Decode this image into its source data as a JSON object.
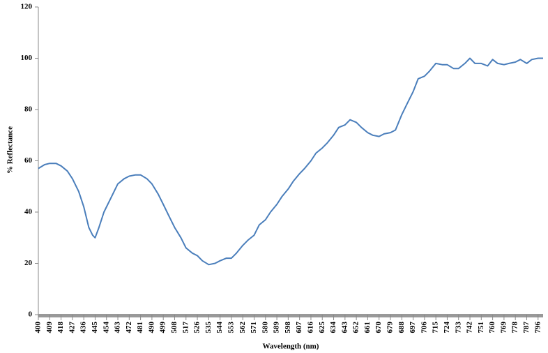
{
  "chart_data": {
    "type": "line",
    "xlabel": "Wavelength (nm)",
    "ylabel": "% Reflectance",
    "x": [
      400,
      405,
      409,
      414,
      418,
      423,
      427,
      432,
      436,
      440,
      443,
      445,
      448,
      452,
      457,
      463,
      468,
      472,
      477,
      481,
      486,
      490,
      495,
      499,
      504,
      508,
      513,
      517,
      522,
      526,
      530,
      535,
      540,
      544,
      549,
      553,
      557,
      562,
      566,
      571,
      575,
      580,
      584,
      589,
      593,
      598,
      602,
      607,
      611,
      616,
      620,
      625,
      629,
      634,
      638,
      643,
      647,
      652,
      656,
      661,
      665,
      670,
      674,
      679,
      683,
      688,
      692,
      697,
      701,
      706,
      710,
      715,
      720,
      724,
      729,
      733,
      738,
      742,
      746,
      751,
      756,
      760,
      764,
      769,
      773,
      778,
      782,
      787,
      791,
      796,
      800
    ],
    "series": [
      {
        "name": "Reflectance",
        "color": "#4a7ebb",
        "values": [
          57,
          58.5,
          59,
          59,
          58,
          56,
          53,
          48,
          42,
          34,
          31,
          30,
          34,
          40,
          45,
          51,
          53,
          54,
          54.5,
          54.5,
          53,
          51,
          47,
          43,
          38,
          34,
          30,
          26,
          24,
          23,
          21,
          19.5,
          20,
          21,
          22,
          22,
          24,
          27,
          29,
          31,
          35,
          37,
          40,
          43,
          46,
          49,
          52,
          55,
          57,
          60,
          63,
          65,
          67,
          70,
          73,
          74,
          76,
          75,
          73,
          71,
          70,
          69.5,
          70.5,
          71,
          72,
          78,
          82,
          87,
          92,
          93,
          95,
          98,
          97.5,
          97.5,
          96,
          96,
          98,
          100,
          98,
          98,
          97,
          99.5,
          98,
          97.5,
          98,
          98.5,
          99.5,
          98,
          99.5,
          100,
          100
        ]
      }
    ],
    "xlim": [
      400,
      800
    ],
    "xticks": [
      400,
      409,
      418,
      427,
      436,
      445,
      454,
      463,
      472,
      481,
      490,
      499,
      508,
      517,
      526,
      535,
      544,
      553,
      562,
      571,
      580,
      589,
      598,
      607,
      616,
      625,
      634,
      643,
      652,
      661,
      670,
      679,
      688,
      697,
      706,
      715,
      724,
      733,
      742,
      751,
      760,
      769,
      778,
      787,
      796
    ],
    "ylim": [
      0,
      120
    ],
    "yticks": [
      0,
      20,
      40,
      60,
      80,
      100,
      120
    ],
    "grid": false
  }
}
